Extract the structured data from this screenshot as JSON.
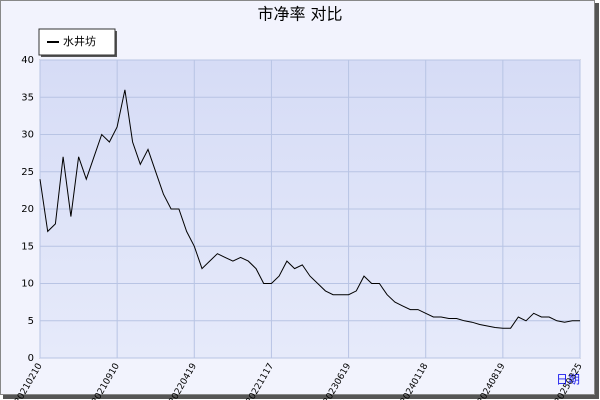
{
  "chart_data": {
    "type": "line",
    "title": "市净率  对比",
    "x_label": "日期",
    "categories": [
      "20210210",
      null,
      null,
      null,
      null,
      null,
      null,
      null,
      null,
      null,
      "20210910",
      null,
      null,
      null,
      null,
      null,
      null,
      null,
      null,
      null,
      "20220419",
      null,
      null,
      null,
      null,
      null,
      null,
      null,
      null,
      null,
      "20221117",
      null,
      null,
      null,
      null,
      null,
      null,
      null,
      null,
      null,
      "20230619",
      null,
      null,
      null,
      null,
      null,
      null,
      null,
      null,
      null,
      "20240118",
      null,
      null,
      null,
      null,
      null,
      null,
      null,
      null,
      null,
      "20240819",
      null,
      null,
      null,
      null,
      null,
      null,
      null,
      null,
      null,
      "20250325"
    ],
    "series": [
      {
        "name": "水井坊",
        "color": "#000000",
        "values": [
          24,
          17,
          18,
          27,
          19,
          27,
          24,
          27,
          30,
          29,
          31,
          36,
          29,
          26,
          28,
          25,
          22,
          20,
          20,
          17,
          15,
          12,
          13,
          14,
          13.5,
          13,
          13.5,
          13,
          12,
          10,
          10,
          11,
          13,
          12,
          12.5,
          11,
          10,
          9,
          8.5,
          8.5,
          8.5,
          9,
          11,
          10,
          10,
          8.5,
          7.5,
          7,
          6.5,
          6.5,
          6,
          5.5,
          5.5,
          5.3,
          5.3,
          5,
          4.8,
          4.5,
          4.3,
          4.1,
          4,
          4,
          5.5,
          5,
          6,
          5.5,
          5.5,
          5,
          4.8,
          5,
          5
        ]
      }
    ],
    "ylim": [
      0,
      40
    ],
    "yticks": [
      0,
      5,
      10,
      15,
      20,
      25,
      30,
      35,
      40
    ],
    "grid": true
  }
}
